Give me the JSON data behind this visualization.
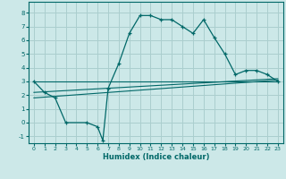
{
  "xlabel": "Humidex (Indice chaleur)",
  "bg_color": "#cce8e8",
  "grid_color": "#aacece",
  "line_color": "#006868",
  "xlim": [
    -0.5,
    23.5
  ],
  "ylim": [
    -1.5,
    8.8
  ],
  "xticks": [
    0,
    1,
    2,
    3,
    4,
    5,
    6,
    7,
    8,
    9,
    10,
    11,
    12,
    13,
    14,
    15,
    16,
    17,
    18,
    19,
    20,
    21,
    22,
    23
  ],
  "yticks": [
    -1,
    0,
    1,
    2,
    3,
    4,
    5,
    6,
    7,
    8
  ],
  "curve1_x": [
    0,
    1,
    2,
    3,
    5,
    6,
    6.5,
    7,
    8,
    9,
    10,
    11,
    12,
    13,
    14,
    15,
    16,
    17,
    18,
    19,
    20,
    21,
    22,
    23
  ],
  "curve1_y": [
    3.0,
    2.2,
    1.8,
    0.0,
    0.0,
    -0.3,
    -1.3,
    2.5,
    4.3,
    6.5,
    7.8,
    7.8,
    7.5,
    7.5,
    7.0,
    6.5,
    7.5,
    6.2,
    5.0,
    3.5,
    3.8,
    3.8,
    3.5,
    3.0
  ],
  "line2_x": [
    0,
    23
  ],
  "line2_y": [
    3.0,
    3.0
  ],
  "line3_x": [
    0,
    23
  ],
  "line3_y": [
    1.8,
    3.1
  ],
  "line4_x": [
    0,
    23
  ],
  "line4_y": [
    2.2,
    3.2
  ]
}
